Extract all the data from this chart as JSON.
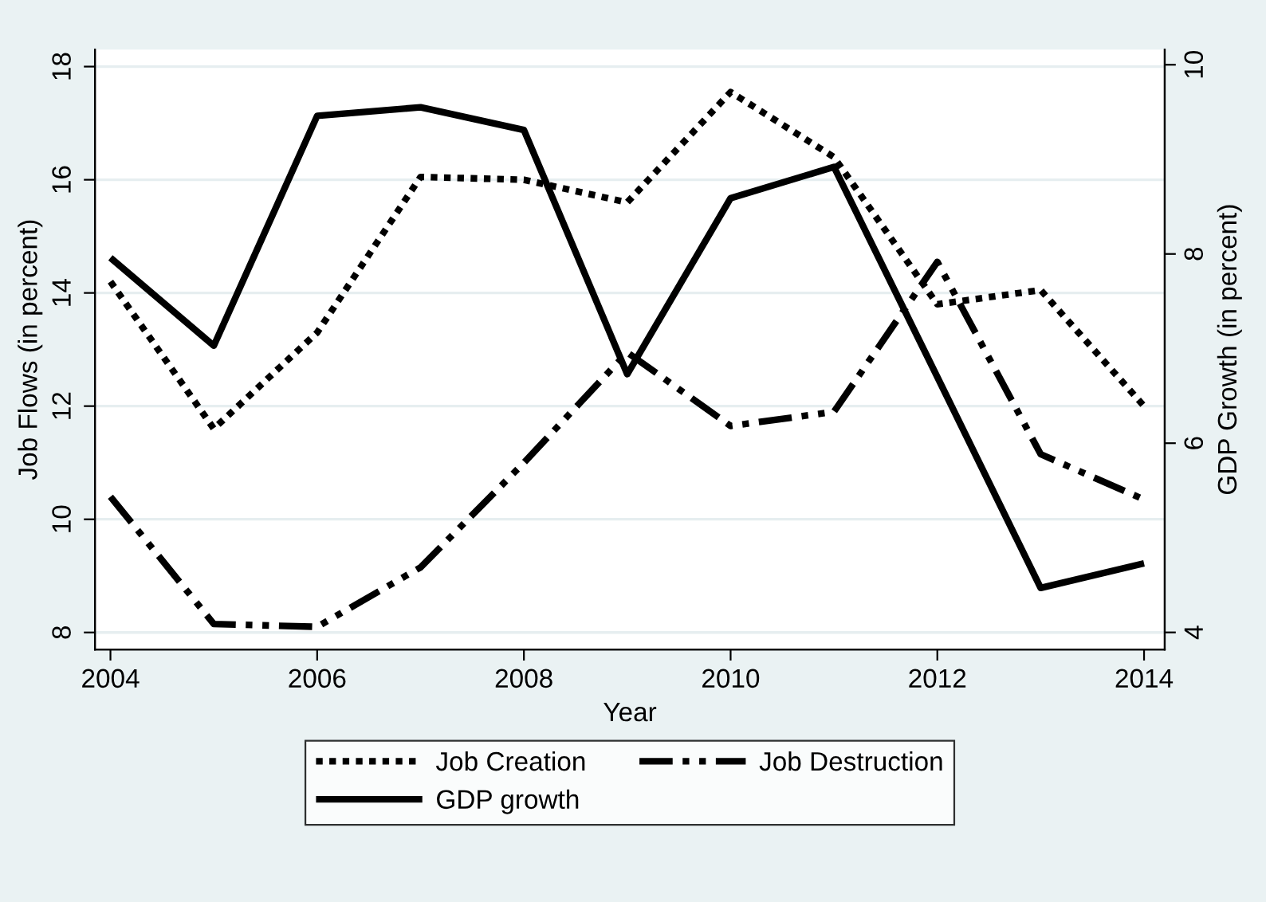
{
  "chart_data": {
    "type": "line",
    "xlabel": "Year",
    "ylabel": "Job Flows (in percent)",
    "y2label": "GDP Growth (in percent)",
    "x": [
      2004,
      2005,
      2006,
      2007,
      2008,
      2009,
      2010,
      2011,
      2012,
      2013,
      2014
    ],
    "series": [
      {
        "name": "Job Creation",
        "color": "#000000",
        "line_style": "dotted",
        "values": [
          14.2,
          11.6,
          13.3,
          16.05,
          16.0,
          15.6,
          17.55,
          16.4,
          13.8,
          14.05,
          12.0
        ]
      },
      {
        "name": "Job Destruction",
        "color": "#000000",
        "line_style": "dashdot",
        "values": [
          10.4,
          8.15,
          8.1,
          9.15,
          11.0,
          12.95,
          11.65,
          11.9,
          14.55,
          11.15,
          10.35
        ]
      },
      {
        "name": "GDP growth",
        "color": "#000000",
        "line_style": "solid",
        "axis": "y2",
        "values": [
          7.96,
          7.03,
          9.46,
          9.55,
          9.31,
          6.73,
          8.59,
          8.92,
          6.7,
          4.47,
          4.73
        ]
      }
    ],
    "xlim": [
      2003.85,
      2014.2
    ],
    "xticks": [
      2004,
      2006,
      2008,
      2010,
      2012,
      2014
    ],
    "ylim": [
      7.7,
      18.3
    ],
    "yticks": [
      8,
      10,
      12,
      14,
      16,
      18
    ],
    "y2lim": [
      3.82,
      10.16
    ],
    "y2ticks": [
      4,
      6,
      8,
      10
    ],
    "grid": "y",
    "legend": "bottom",
    "marker": "none"
  }
}
